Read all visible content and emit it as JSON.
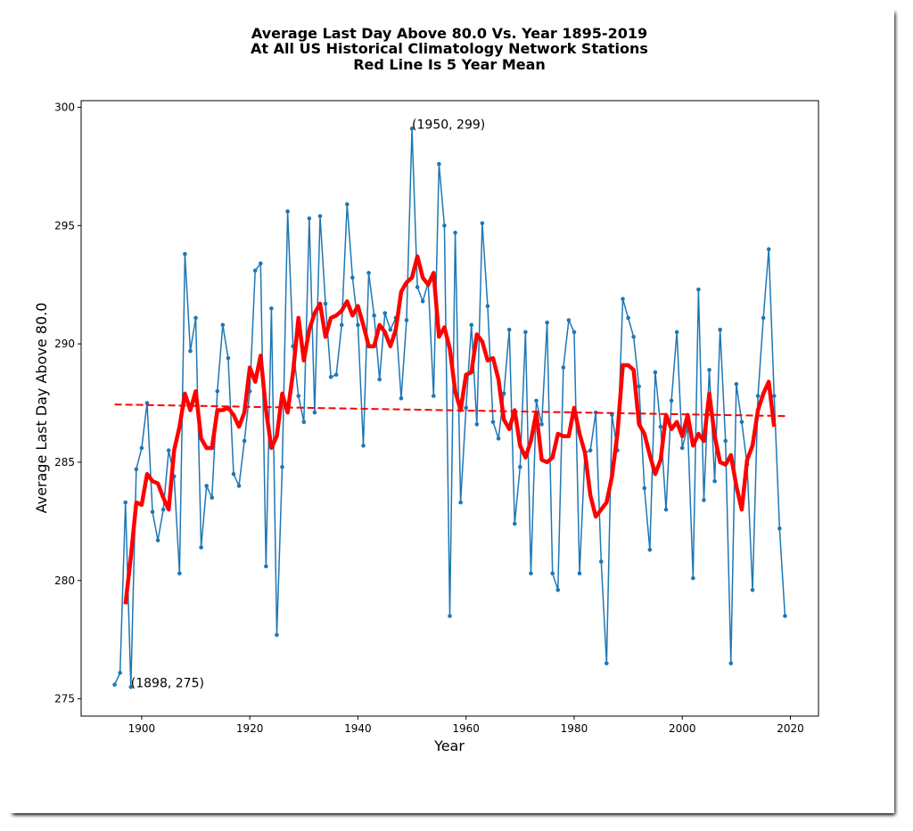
{
  "chart_data": {
    "type": "line",
    "title": [
      "Average Last Day Above 80.0 Vs. Year 1895-2019",
      "At All US Historical Climatology Network Stations",
      "Red Line Is 5 Year Mean"
    ],
    "xlabel": "Year",
    "ylabel": "Average Last Day Above 80.0",
    "xlim": [
      1888.8,
      2025.2
    ],
    "ylim": [
      274.27,
      300.28
    ],
    "xticks": [
      1900,
      1920,
      1940,
      1960,
      1980,
      2000,
      2020
    ],
    "yticks": [
      275,
      280,
      285,
      290,
      295,
      300
    ],
    "grid": false,
    "series": [
      {
        "color": "#1f77b4",
        "markers": true,
        "width": 1.5,
        "dash": false,
        "x": [
          1895,
          1896,
          1897,
          1898,
          1899,
          1900,
          1901,
          1902,
          1903,
          1904,
          1905,
          1906,
          1907,
          1908,
          1909,
          1910,
          1911,
          1912,
          1913,
          1914,
          1915,
          1916,
          1917,
          1918,
          1919,
          1920,
          1921,
          1922,
          1923,
          1924,
          1925,
          1926,
          1927,
          1928,
          1929,
          1930,
          1931,
          1932,
          1933,
          1934,
          1935,
          1936,
          1937,
          1938,
          1939,
          1940,
          1941,
          1942,
          1943,
          1944,
          1945,
          1946,
          1947,
          1948,
          1949,
          1950,
          1951,
          1952,
          1953,
          1954,
          1955,
          1956,
          1957,
          1958,
          1959,
          1960,
          1961,
          1962,
          1963,
          1964,
          1965,
          1966,
          1967,
          1968,
          1969,
          1970,
          1971,
          1972,
          1973,
          1974,
          1975,
          1976,
          1977,
          1978,
          1979,
          1980,
          1981,
          1982,
          1983,
          1984,
          1985,
          1986,
          1987,
          1988,
          1989,
          1990,
          1991,
          1992,
          1993,
          1994,
          1995,
          1996,
          1997,
          1998,
          1999,
          2000,
          2001,
          2002,
          2003,
          2004,
          2005,
          2006,
          2007,
          2008,
          2009,
          2010,
          2011,
          2012,
          2013,
          2014,
          2015,
          2016,
          2017,
          2018,
          2019
        ],
        "values": [
          275.6,
          276.1,
          283.3,
          275.5,
          284.7,
          285.6,
          287.5,
          282.9,
          281.7,
          283.0,
          285.5,
          284.4,
          280.3,
          293.8,
          289.7,
          291.1,
          281.4,
          284.0,
          283.5,
          288.0,
          290.8,
          289.4,
          284.5,
          284.0,
          285.9,
          288.0,
          293.1,
          293.4,
          280.6,
          291.5,
          277.7,
          284.8,
          295.6,
          289.9,
          287.8,
          286.7,
          295.3,
          287.1,
          295.4,
          291.7,
          288.6,
          288.7,
          290.8,
          295.9,
          292.8,
          290.8,
          285.7,
          293.0,
          291.2,
          288.5,
          291.3,
          290.6,
          291.1,
          287.7,
          291.0,
          299.1,
          292.4,
          291.8,
          292.6,
          287.8,
          297.6,
          295.0,
          278.5,
          294.7,
          283.3,
          287.3,
          290.8,
          286.6,
          295.1,
          291.6,
          286.7,
          286.0,
          287.9,
          290.6,
          282.4,
          284.8,
          290.5,
          280.3,
          287.6,
          286.6,
          290.9,
          280.3,
          279.6,
          289.0,
          291.0,
          290.5,
          280.3,
          285.4,
          285.5,
          287.1,
          280.8,
          276.5,
          287.0,
          285.5,
          291.9,
          291.1,
          290.3,
          288.2,
          283.9,
          281.3,
          288.8,
          286.5,
          283.0,
          287.6,
          290.5,
          285.6,
          286.5,
          280.1,
          292.3,
          283.4,
          288.9,
          284.2,
          290.6,
          285.9,
          276.5,
          288.3,
          286.7,
          284.9,
          279.6,
          287.8,
          291.1,
          294.0,
          287.8,
          282.2,
          278.5
        ]
      },
      {
        "color": "#ff0000",
        "markers": false,
        "width": 4.5,
        "dash": false,
        "x": [
          1897,
          1898,
          1899,
          1900,
          1901,
          1902,
          1903,
          1904,
          1905,
          1906,
          1907,
          1908,
          1909,
          1910,
          1911,
          1912,
          1913,
          1914,
          1915,
          1916,
          1917,
          1918,
          1919,
          1920,
          1921,
          1922,
          1923,
          1924,
          1925,
          1926,
          1927,
          1928,
          1929,
          1930,
          1931,
          1932,
          1933,
          1934,
          1935,
          1936,
          1937,
          1938,
          1939,
          1940,
          1941,
          1942,
          1943,
          1944,
          1945,
          1946,
          1947,
          1948,
          1949,
          1950,
          1951,
          1952,
          1953,
          1954,
          1955,
          1956,
          1957,
          1958,
          1959,
          1960,
          1961,
          1962,
          1963,
          1964,
          1965,
          1966,
          1967,
          1968,
          1969,
          1970,
          1971,
          1972,
          1973,
          1974,
          1975,
          1976,
          1977,
          1978,
          1979,
          1980,
          1981,
          1982,
          1983,
          1984,
          1985,
          1986,
          1987,
          1988,
          1989,
          1990,
          1991,
          1992,
          1993,
          1994,
          1995,
          1996,
          1997,
          1998,
          1999,
          2000,
          2001,
          2002,
          2003,
          2004,
          2005,
          2006,
          2007,
          2008,
          2009,
          2010,
          2011,
          2012,
          2013,
          2014,
          2015,
          2016,
          2017
        ],
        "values": [
          279.0,
          281.0,
          283.3,
          283.2,
          284.5,
          284.2,
          284.1,
          283.5,
          283.0,
          285.5,
          286.5,
          287.9,
          287.2,
          288.0,
          286.0,
          285.6,
          285.6,
          287.2,
          287.2,
          287.3,
          287.0,
          286.5,
          287.1,
          289.0,
          288.4,
          289.5,
          287.2,
          285.6,
          286.1,
          287.9,
          287.1,
          288.8,
          291.1,
          289.3,
          290.6,
          291.3,
          291.7,
          290.3,
          291.1,
          291.2,
          291.4,
          291.8,
          291.2,
          291.6,
          290.8,
          289.9,
          289.9,
          290.8,
          290.5,
          289.9,
          290.6,
          292.2,
          292.6,
          292.8,
          293.7,
          292.8,
          292.5,
          293.0,
          290.3,
          290.7,
          289.8,
          288.0,
          287.2,
          288.7,
          288.8,
          290.4,
          290.1,
          289.3,
          289.4,
          288.5,
          286.8,
          286.4,
          287.2,
          285.7,
          285.2,
          285.9,
          287.1,
          285.1,
          285.0,
          285.2,
          286.2,
          286.1,
          286.1,
          287.3,
          286.2,
          285.4,
          283.6,
          282.7,
          283.0,
          283.3,
          284.4,
          286.2,
          289.1,
          289.1,
          288.9,
          286.6,
          286.2,
          285.3,
          284.5,
          285.1,
          287.0,
          286.4,
          286.7,
          286.1,
          287.0,
          285.7,
          286.2,
          285.9,
          287.9,
          286.1,
          285.0,
          284.9,
          285.3,
          284.0,
          283.0,
          285.1,
          285.7,
          287.2,
          287.9,
          288.4,
          286.5
        ]
      },
      {
        "color": "#ff0000",
        "markers": false,
        "width": 2,
        "dash": true,
        "x": [
          1895,
          2019
        ],
        "values": [
          287.44,
          286.95
        ]
      }
    ],
    "annotations": [
      {
        "text": "(1950, 299)",
        "x": 1950,
        "y": 299.1
      },
      {
        "text": "(1898, 275)",
        "x": 1898,
        "y": 275.5
      }
    ]
  }
}
